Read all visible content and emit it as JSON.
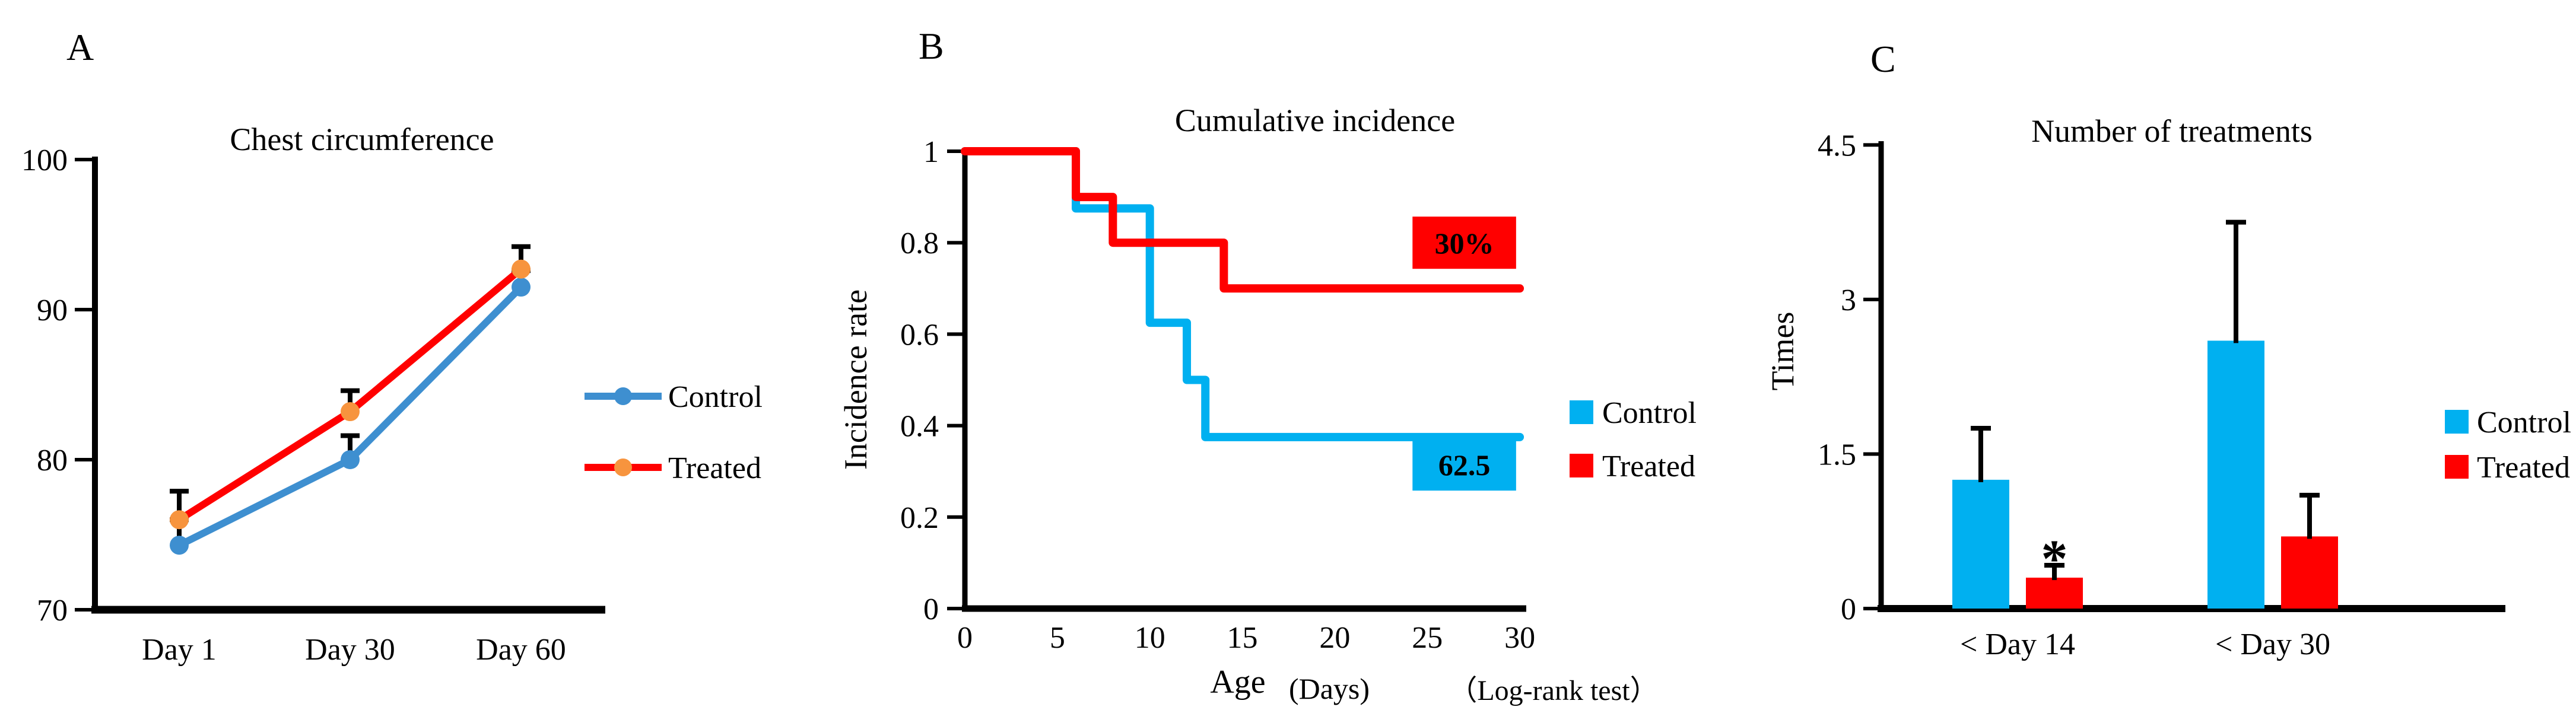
{
  "figure": {
    "background": "#FFFFFF"
  },
  "chart_data": [
    {
      "type": "line",
      "panel_label": "A",
      "title": "Chest circumference",
      "categories": [
        "Day 1",
        "Day 30",
        "Day 60"
      ],
      "ylim": [
        70,
        100
      ],
      "y_ticks": [
        100,
        90,
        80,
        70
      ],
      "grid": false,
      "legend_position": "right-middle",
      "series": [
        {
          "name": "Control",
          "color": "#3E8FD0",
          "marker_color": "#3E8FD0",
          "values": [
            74.3,
            80.0,
            91.5
          ],
          "errors_upper": [
            1.7,
            1.6,
            1.1
          ]
        },
        {
          "name": "Treated",
          "color": "#FF0000",
          "marker_color": "#F7943E",
          "values": [
            76.0,
            83.2,
            92.7
          ],
          "errors_upper": [
            1.9,
            1.4,
            1.5
          ]
        }
      ]
    },
    {
      "type": "step",
      "panel_label": "B",
      "title": "Cumulative incidence",
      "ylabel": "Incidence rate",
      "xlabel": "Age",
      "xlabel_units": "(Days)",
      "footnote": "（Log-rank test）",
      "xlim": [
        0,
        30
      ],
      "ylim": [
        0,
        1
      ],
      "x_ticks": [
        0,
        5,
        10,
        15,
        20,
        25,
        30
      ],
      "y_ticks": [
        1,
        0.8,
        0.6,
        0.4,
        0.2,
        0
      ],
      "grid": false,
      "legend_position": "right-lower",
      "series": [
        {
          "name": "Control",
          "color": "#00B0F0",
          "points": [
            [
              0,
              1
            ],
            [
              6,
              1
            ],
            [
              6,
              0.875
            ],
            [
              10,
              0.875
            ],
            [
              10,
              0.625
            ],
            [
              12,
              0.625
            ],
            [
              12,
              0.5
            ],
            [
              13,
              0.5
            ],
            [
              13,
              0.375
            ],
            [
              30,
              0.375
            ]
          ]
        },
        {
          "name": "Treated",
          "color": "#FF0000",
          "points": [
            [
              0,
              1
            ],
            [
              6,
              1
            ],
            [
              6,
              0.9
            ],
            [
              8,
              0.9
            ],
            [
              8,
              0.8
            ],
            [
              14,
              0.8
            ],
            [
              14,
              0.7
            ],
            [
              30,
              0.7
            ]
          ]
        }
      ],
      "annotations": [
        {
          "text": "30%",
          "box_color": "#FF0000",
          "text_color": "#FFFFFF",
          "x_span": [
            24.2,
            29.8
          ],
          "y_center": 0.8
        },
        {
          "text": "62.5",
          "box_color": "#00B0F0",
          "text_color": "#FFFFFF",
          "x_span": [
            24.2,
            29.8
          ],
          "y_center": 0.315
        }
      ]
    },
    {
      "type": "bar",
      "panel_label": "C",
      "title": "Number of treatments",
      "ylabel": "Times",
      "categories": [
        "< Day 14",
        "< Day 30"
      ],
      "ylim": [
        0,
        4.5
      ],
      "y_ticks": [
        4.5,
        3,
        1.5,
        0
      ],
      "grid": false,
      "legend_position": "right-middle",
      "series": [
        {
          "name": "Control",
          "color": "#00B0F0",
          "values": [
            1.25,
            2.6
          ],
          "errors_upper": [
            0.5,
            1.15
          ]
        },
        {
          "name": "Treated",
          "color": "#FF0000",
          "values": [
            0.3,
            0.7
          ],
          "errors_upper": [
            0.12,
            0.4
          ]
        }
      ],
      "significance_marks": [
        {
          "text": "*",
          "category_index": 0,
          "series_index": 1
        }
      ]
    }
  ]
}
